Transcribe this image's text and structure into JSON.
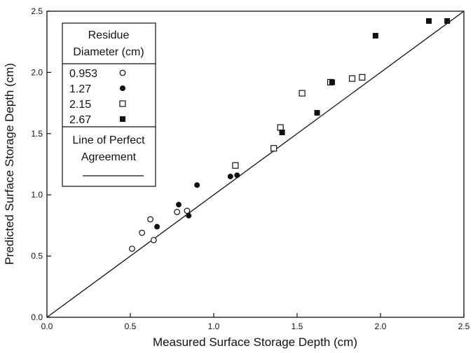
{
  "chart_data": {
    "type": "scatter",
    "xlabel": "Measured Surface Storage Depth (cm)",
    "ylabel": "Predicted Surface Storage Depth (cm)",
    "xlim": [
      0.0,
      2.5
    ],
    "ylim": [
      0.0,
      2.5
    ],
    "x_ticks": [
      "0.0",
      "0.5",
      "1.0",
      "1.5",
      "2.0",
      "2.5"
    ],
    "y_ticks": [
      "0.0",
      "0.5",
      "1.0",
      "1.5",
      "2.0",
      "2.5"
    ],
    "grid": false,
    "legend": {
      "placement": "top-left",
      "title_line1": "Residue",
      "title_line2": "Diameter (cm)",
      "line_label_line1": "Line of Perfect",
      "line_label_line2": "Agreement"
    },
    "reference_line": {
      "x": [
        0.0,
        2.5
      ],
      "y": [
        0.0,
        2.5
      ]
    },
    "series": [
      {
        "name": "0.953",
        "marker": "open-circle",
        "points": [
          [
            0.51,
            0.56
          ],
          [
            0.57,
            0.69
          ],
          [
            0.62,
            0.8
          ],
          [
            0.64,
            0.63
          ],
          [
            0.78,
            0.86
          ],
          [
            0.84,
            0.87
          ]
        ]
      },
      {
        "name": "1.27",
        "marker": "filled-circle",
        "points": [
          [
            0.66,
            0.74
          ],
          [
            0.79,
            0.92
          ],
          [
            0.85,
            0.83
          ],
          [
            0.9,
            1.08
          ],
          [
            1.1,
            1.15
          ],
          [
            1.14,
            1.16
          ]
        ]
      },
      {
        "name": "2.15",
        "marker": "open-square",
        "points": [
          [
            1.13,
            1.24
          ],
          [
            1.36,
            1.38
          ],
          [
            1.4,
            1.55
          ],
          [
            1.53,
            1.83
          ],
          [
            1.7,
            1.92
          ],
          [
            1.83,
            1.95
          ],
          [
            1.89,
            1.96
          ]
        ]
      },
      {
        "name": "2.67",
        "marker": "filled-square",
        "points": [
          [
            1.41,
            1.51
          ],
          [
            1.62,
            1.67
          ],
          [
            1.71,
            1.92
          ],
          [
            1.97,
            2.3
          ],
          [
            2.29,
            2.42
          ],
          [
            2.4,
            2.42
          ]
        ]
      }
    ]
  }
}
